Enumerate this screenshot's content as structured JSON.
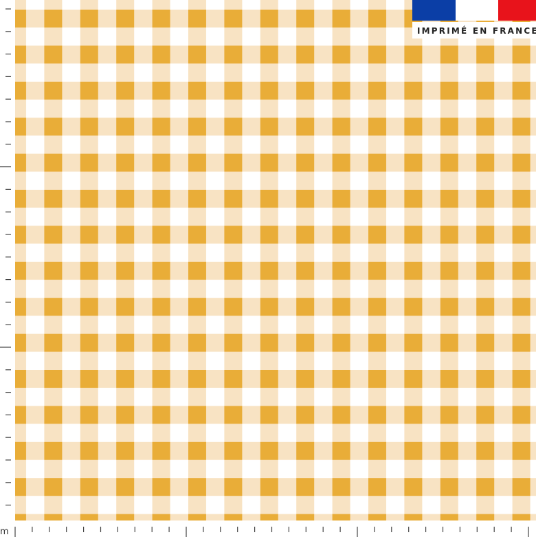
{
  "badge": {
    "text": "IMPRIMÉ EN FRANCE"
  },
  "ruler": {
    "unit": "m"
  }
}
